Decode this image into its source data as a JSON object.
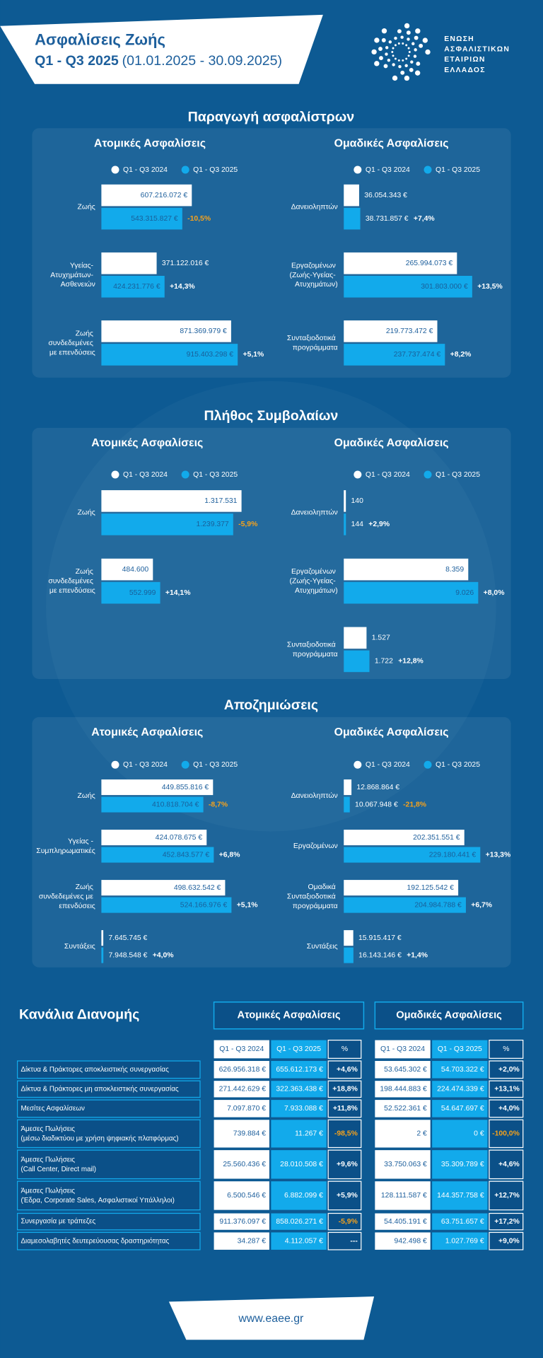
{
  "header": {
    "title": "Ασφαλίσεις Ζωής",
    "period_bold": "Q1 - Q3 2025",
    "period_dates": "(01.01.2025 - 30.09.2025)",
    "logo": [
      "ΕΝΩΣΗ",
      "ΑΣΦΑΛΙΣΤΙΚΩΝ",
      "ΕΤΑΙΡΙΩΝ",
      "ΕΛΛΑΔΟΣ"
    ]
  },
  "sections": [
    "Παραγωγή ασφαλίστρων",
    "Πλήθος Συμβολαίων",
    "Αποζημιώσεις"
  ],
  "chart_data": [
    {
      "type": "bar",
      "orientation": "horizontal",
      "title": "Ατομικές Ασφαλίσεις",
      "xlim": [
        0,
        1000000000
      ],
      "categories": [
        "Ζωής",
        "Υγείας-\nΑτυχημάτων-\nΑσθενειών",
        "Ζωής\nσυνδεδεμένες\nμε επενδύσεις"
      ],
      "series": [
        {
          "name": "Q1 - Q3 2024",
          "color": "#ffffff",
          "values": [
            607216072,
            371122016,
            871369979
          ],
          "value_labels": [
            "607.216.072 €",
            "371.122.016 €",
            "871.369.979 €"
          ]
        },
        {
          "name": "Q1 - Q3 2025",
          "color": "#12aaeb",
          "values": [
            543315827,
            424231776,
            915403298
          ],
          "value_labels": [
            "543.315.827 €",
            "424.231.776 €",
            "915.403.298 €"
          ]
        }
      ],
      "change_labels": [
        "-10,5%",
        "+14,3%",
        "+5,1%"
      ]
    },
    {
      "type": "bar",
      "orientation": "horizontal",
      "title": "Ομαδικές Ασφαλίσεις",
      "xlim": [
        0,
        350000000
      ],
      "categories": [
        "Δανειοληπτών",
        "Εργαζομένων\n(Ζωής-Υγείας-\nΑτυχημάτων)",
        "Συνταξιοδοτικά\nπρογράμματα"
      ],
      "series": [
        {
          "name": "Q1 - Q3 2024",
          "color": "#ffffff",
          "values": [
            36054343,
            265994073,
            219773472
          ],
          "value_labels": [
            "36.054.343 €",
            "265.994.073 €",
            "219.773.472 €"
          ]
        },
        {
          "name": "Q1 - Q3 2025",
          "color": "#12aaeb",
          "values": [
            38731857,
            301803000,
            237737474
          ],
          "value_labels": [
            "38.731.857 €",
            "301.803.000 €",
            "237.737.474 €"
          ]
        }
      ],
      "change_labels": [
        "+7,4%",
        "+13,5%",
        "+8,2%"
      ]
    },
    {
      "type": "bar",
      "orientation": "horizontal",
      "title": "Ατομικές Ασφαλίσεις",
      "xlim": [
        0,
        1400000
      ],
      "categories": [
        "Ζωής",
        "Ζωής\nσυνδεδεμένες\nμε επενδύσεις"
      ],
      "series": [
        {
          "name": "Q1 - Q3 2024",
          "color": "#ffffff",
          "values": [
            1317531,
            484600
          ],
          "value_labels": [
            "1.317.531",
            "484.600"
          ]
        },
        {
          "name": "Q1 - Q3 2025",
          "color": "#12aaeb",
          "values": [
            1239377,
            552999
          ],
          "value_labels": [
            "1.239.377",
            "552.999"
          ]
        }
      ],
      "change_labels": [
        "-5,9%",
        "+14,1%"
      ]
    },
    {
      "type": "bar",
      "orientation": "horizontal",
      "title": "Ομαδικές Ασφαλίσεις",
      "xlim": [
        0,
        10000
      ],
      "categories": [
        "Δανειοληπτών",
        "Εργαζομένων\n(Ζωής-Υγείας-\nΑτυχημάτων)",
        "Συνταξιοδοτικά\nπρογράμματα"
      ],
      "series": [
        {
          "name": "Q1 - Q3 2024",
          "color": "#ffffff",
          "values": [
            140,
            8359,
            1527
          ],
          "value_labels": [
            "140",
            "8.359",
            "1.527"
          ]
        },
        {
          "name": "Q1 - Q3 2025",
          "color": "#12aaeb",
          "values": [
            144,
            9026,
            1722
          ],
          "value_labels": [
            "144",
            "9.026",
            "1.722"
          ]
        }
      ],
      "change_labels": [
        "+2,9%",
        "+8,0%",
        "+12,8%"
      ]
    },
    {
      "type": "bar",
      "orientation": "horizontal",
      "title": "Ατομικές Ασφαλίσεις",
      "xlim": [
        0,
        600000000
      ],
      "categories": [
        "Ζωής",
        "Υγείας -\nΣυμπληρωματικές",
        "Ζωής\nσυνδεδεμένες με\nεπενδύσεις",
        "Συντάξεις"
      ],
      "series": [
        {
          "name": "Q1 - Q3 2024",
          "color": "#ffffff",
          "values": [
            449855816,
            424078675,
            498632542,
            7645745
          ],
          "value_labels": [
            "449.855.816 €",
            "424.078.675 €",
            "498.632.542 €",
            "7.645.745 €"
          ]
        },
        {
          "name": "Q1 - Q3 2025",
          "color": "#12aaeb",
          "values": [
            410818704,
            452843577,
            524166976,
            7948548
          ],
          "value_labels": [
            "410.818.704 €",
            "452.843.577 €",
            "524.166.976 €",
            "7.948.548 €"
          ]
        }
      ],
      "change_labels": [
        "-8,7%",
        "+6,8%",
        "+5,1%",
        "+4,0%"
      ]
    },
    {
      "type": "bar",
      "orientation": "horizontal",
      "title": "Ομαδικές Ασφαλίσεις",
      "xlim": [
        0,
        250000000
      ],
      "categories": [
        "Δανειοληπτών",
        "Εργαζομένων",
        "Ομαδικά\nΣυνταξιοδοτικά\nπρογράμματα",
        "Συντάξεις"
      ],
      "series": [
        {
          "name": "Q1 - Q3 2024",
          "color": "#ffffff",
          "values": [
            12868864,
            202351551,
            192125542,
            15915417
          ],
          "value_labels": [
            "12.868.864 €",
            "202.351.551 €",
            "192.125.542 €",
            "15.915.417 €"
          ]
        },
        {
          "name": "Q1 - Q3 2025",
          "color": "#12aaeb",
          "values": [
            10067948,
            229180441,
            204984788,
            16143146
          ],
          "value_labels": [
            "10.067.948 €",
            "229.180.441 €",
            "204.984.788 €",
            "16.143.146 €"
          ]
        }
      ],
      "change_labels": [
        "-21,8%",
        "+13,3%",
        "+6,7%",
        "+1,4%"
      ]
    }
  ],
  "table": {
    "title": "Κανάλια Διανομής",
    "groups": [
      "Ατομικές Ασφαλίσεις",
      "Ομαδικές Ασφαλίσεις"
    ],
    "columns": [
      "Q1 - Q3 2024",
      "Q1 - Q3 2025",
      "%"
    ],
    "rows": [
      {
        "label": "Δίκτυα & Πράκτορες αποκλειστικής συνεργασίας",
        "cells": [
          "626.956.318 €",
          "655.612.173 €",
          "+4,6%",
          "53.645.302 €",
          "54.703.322 €",
          "+2,0%"
        ]
      },
      {
        "label": "Δίκτυα & Πράκτορες μη αποκλειστικής συνεργασίας",
        "cells": [
          "271.442.629 €",
          "322.363.438 €",
          "+18,8%",
          "198.444.883 €",
          "224.474.339 €",
          "+13,1%"
        ]
      },
      {
        "label": "Μεσίτες Ασφαλίσεων",
        "cells": [
          "7.097.870 €",
          "7.933.088 €",
          "+11,8%",
          "52.522.361 €",
          "54.647.697 €",
          "+4,0%"
        ]
      },
      {
        "label": "Άμεσες Πωλήσεις\n(μέσω διαδικτύου με χρήση ψηφιακής πλατφόρμας)",
        "cells": [
          "739.884 €",
          "11.267 €",
          "-98,5%",
          "2 €",
          "0 €",
          "-100,0%"
        ]
      },
      {
        "label": "Άμεσες Πωλήσεις\n(Call Center,  Direct mail)",
        "cells": [
          "25.560.436 €",
          "28.010.508 €",
          "+9,6%",
          "33.750.063 €",
          "35.309.789 €",
          "+4,6%"
        ]
      },
      {
        "label": "Άμεσες Πωλήσεις\n(Έδρα, Corporate Sales, Ασφαλιστικοί Υπάλληλοι)",
        "cells": [
          "6.500.546 €",
          "6.882.099 €",
          "+5,9%",
          "128.111.587 €",
          "144.357.758 €",
          "+12,7%"
        ]
      },
      {
        "label": "Συνεργασία με τράπεζες",
        "cells": [
          "911.376.097 €",
          "858.026.271 €",
          "-5,9%",
          "54.405.191 €",
          "63.751.657 €",
          "+17,2%"
        ]
      },
      {
        "label": "Διαμεσολαβητές δευτερεύουσας δραστηριότητας",
        "cells": [
          "34.287 €",
          "4.112.057 €",
          "---",
          "942.498 €",
          "1.027.769 €",
          "+9,0%"
        ]
      }
    ]
  },
  "footer": {
    "url": "www.eaee.gr"
  }
}
